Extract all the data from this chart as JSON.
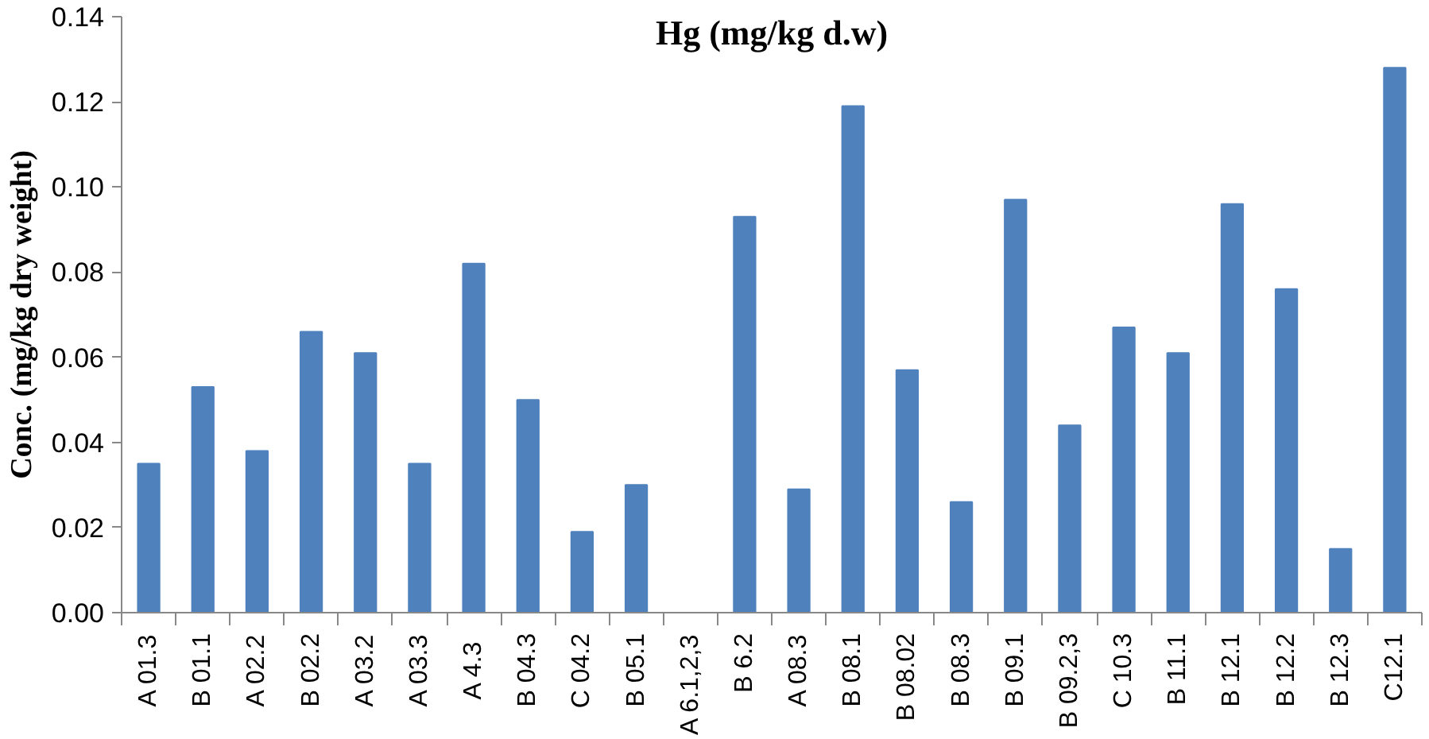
{
  "chart_data": {
    "type": "bar",
    "title": "Hg (mg/kg d.w)",
    "ylabel": "Conc. (mg/kg dry weight)",
    "categories": [
      "A 01.3",
      "B 01.1",
      "A 02.2",
      "B 02.2",
      "A 03.2",
      "A 03.3",
      "A  4.3",
      "B 04.3",
      "C 04.2",
      "B 05.1",
      "A 6.1,2,3",
      "B 6.2",
      "A 08.3",
      "B 08.1",
      "B 08.02",
      "B 08.3",
      "B 09.1",
      "B 09.2,3",
      "C 10.3",
      "B 11.1",
      "B 12.1",
      "B 12.2",
      "B 12.3",
      "C12.1"
    ],
    "values": [
      0.035,
      0.053,
      0.038,
      0.066,
      0.061,
      0.035,
      0.082,
      0.05,
      0.019,
      0.03,
      null,
      0.093,
      0.029,
      0.119,
      0.057,
      0.026,
      0.097,
      0.044,
      0.067,
      0.061,
      0.096,
      0.076,
      0.015,
      0.128
    ],
    "color": "#4f81bd",
    "ylim": [
      0,
      0.14
    ],
    "yticks": [
      {
        "value": 0,
        "label": "0.00"
      },
      0.02,
      0.04,
      0.06,
      0.08,
      {
        "value": 0.1,
        "label": "0.10"
      },
      0.12,
      0.14
    ],
    "grid": false
  }
}
